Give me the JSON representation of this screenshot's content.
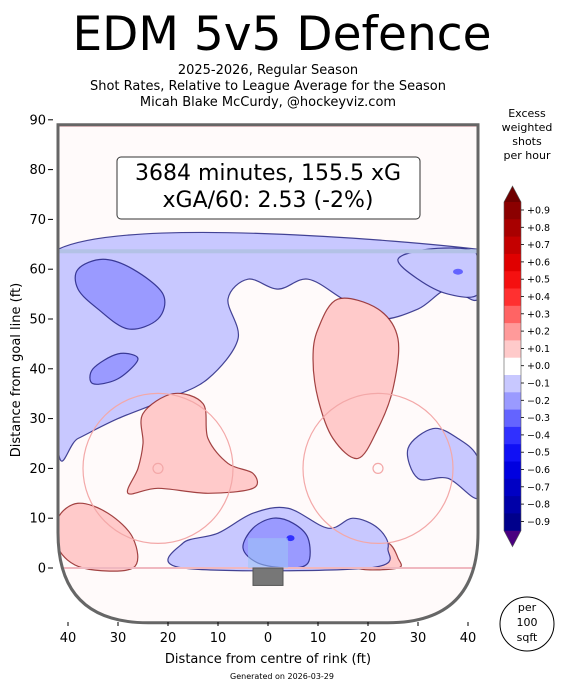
{
  "title": "EDM 5v5 Defence",
  "subtitle_lines": [
    "2025-2026, Regular Season",
    "Shot Rates, Relative to League Average for the Season",
    "Micah Blake McCurdy, @hockeyviz.com"
  ],
  "footer": "Generated on 2026-03-29",
  "annotation": {
    "line1": "3684 minutes, 155.5 xG",
    "line2": "xGA/60: 2.53 (-2%)"
  },
  "chart_data": {
    "type": "heatmap",
    "xlabel": "Distance from centre of rink (ft)",
    "ylabel": "Distance from goal line (ft)",
    "xlim": [
      -42,
      42
    ],
    "ylim": [
      -11,
      90
    ],
    "x_ticks": [
      {
        "v": -40,
        "label": "40"
      },
      {
        "v": -30,
        "label": "30"
      },
      {
        "v": -20,
        "label": "20"
      },
      {
        "v": -10,
        "label": "10"
      },
      {
        "v": 0,
        "label": "0"
      },
      {
        "v": 10,
        "label": "10"
      },
      {
        "v": 20,
        "label": "20"
      },
      {
        "v": 30,
        "label": "30"
      },
      {
        "v": 40,
        "label": "40"
      }
    ],
    "y_ticks": [
      0,
      10,
      20,
      30,
      40,
      50,
      60,
      70,
      80,
      90
    ],
    "colorbar": {
      "title_lines": [
        "Excess",
        "weighted",
        "shots",
        "per hour"
      ],
      "labels": [
        "+0.9",
        "+0.8",
        "+0.7",
        "+0.6",
        "+0.5",
        "+0.4",
        "+0.3",
        "+0.2",
        "+0.1",
        "+0.0",
        "−0.1",
        "−0.2",
        "−0.3",
        "−0.4",
        "−0.5",
        "−0.6",
        "−0.7",
        "−0.8",
        "−0.9"
      ],
      "colors": [
        "#8b0000",
        "#a80000",
        "#c40000",
        "#e00000",
        "#f51010",
        "#ff3030",
        "#ff6464",
        "#ff9a9a",
        "#ffcaca",
        "#ffffff",
        "#c8c8ff",
        "#9a9aff",
        "#6464ff",
        "#3030ff",
        "#1010f5",
        "#0000e0",
        "#0000c4",
        "#0000a8",
        "#00008b"
      ],
      "extend_colors": {
        "top": "#6e0000",
        "bottom": "#4a0080"
      },
      "unit_lines": [
        "per",
        "100",
        "sqft"
      ]
    },
    "regions": [
      {
        "level": -0.1,
        "sign": "negative",
        "description_points": [
          [
            -42,
            64
          ],
          [
            42,
            64
          ],
          [
            42,
            54
          ],
          [
            36,
            56
          ],
          [
            30,
            52
          ],
          [
            22,
            50
          ],
          [
            15,
            54
          ],
          [
            8,
            58
          ],
          [
            2,
            56
          ],
          [
            -4,
            58
          ],
          [
            -8,
            54
          ],
          [
            -6,
            46
          ],
          [
            -12,
            38
          ],
          [
            -20,
            34
          ],
          [
            -30,
            30
          ],
          [
            -38,
            26
          ],
          [
            -42,
            24
          ]
        ]
      },
      {
        "level": -0.2,
        "sign": "negative",
        "points": [
          [
            -38,
            60
          ],
          [
            -33,
            62
          ],
          [
            -27,
            60
          ],
          [
            -21,
            55
          ],
          [
            -22,
            50
          ],
          [
            -28,
            48
          ],
          [
            -34,
            52
          ],
          [
            -38,
            56
          ]
        ]
      },
      {
        "level": -0.2,
        "sign": "negative",
        "points": [
          [
            -35,
            40
          ],
          [
            -30,
            43
          ],
          [
            -26,
            42
          ],
          [
            -30,
            38
          ],
          [
            -35,
            37
          ]
        ]
      },
      {
        "level": 0.1,
        "sign": "positive",
        "points": [
          [
            10,
            48
          ],
          [
            14,
            54
          ],
          [
            22,
            52
          ],
          [
            26,
            46
          ],
          [
            25,
            36
          ],
          [
            22,
            28
          ],
          [
            18,
            22
          ],
          [
            13,
            26
          ],
          [
            10,
            34
          ],
          [
            9,
            42
          ]
        ]
      },
      {
        "level": 0.1,
        "sign": "positive",
        "points": [
          [
            -25,
            31
          ],
          [
            -19,
            35
          ],
          [
            -13,
            33
          ],
          [
            -12,
            26
          ],
          [
            -8,
            21
          ],
          [
            -3,
            19
          ],
          [
            -3,
            16
          ],
          [
            -12,
            15
          ],
          [
            -22,
            16
          ],
          [
            -28,
            15
          ],
          [
            -26,
            20
          ],
          [
            -25,
            25
          ]
        ]
      },
      {
        "level": 0.1,
        "sign": "positive",
        "points": [
          [
            -42,
            10
          ],
          [
            -38,
            13
          ],
          [
            -32,
            11
          ],
          [
            -27,
            6
          ],
          [
            -27,
            0
          ],
          [
            -37,
            0
          ],
          [
            -42,
            4
          ]
        ]
      },
      {
        "level": 0.1,
        "sign": "positive",
        "points": [
          [
            18,
            0
          ],
          [
            20,
            4
          ],
          [
            24,
            5
          ],
          [
            26,
            2
          ],
          [
            26,
            0
          ]
        ]
      },
      {
        "level": -0.1,
        "sign": "negative",
        "points": [
          [
            -17,
            5
          ],
          [
            -10,
            7
          ],
          [
            -3,
            11
          ],
          [
            4,
            12
          ],
          [
            12,
            8
          ],
          [
            17,
            10
          ],
          [
            22,
            8
          ],
          [
            24,
            4
          ],
          [
            20,
            0
          ],
          [
            -17,
            0
          ]
        ]
      },
      {
        "level": -0.2,
        "sign": "negative",
        "points": [
          [
            -3,
            8
          ],
          [
            1,
            10
          ],
          [
            5,
            9
          ],
          [
            8,
            6
          ],
          [
            8,
            1
          ],
          [
            4,
            0
          ],
          [
            -2,
            1
          ],
          [
            -5,
            4
          ]
        ]
      },
      {
        "level": -0.1,
        "sign": "negative",
        "points": [
          [
            28,
            24
          ],
          [
            33,
            28
          ],
          [
            38,
            26
          ],
          [
            42,
            22
          ],
          [
            42,
            14
          ],
          [
            36,
            18
          ],
          [
            30,
            18
          ]
        ]
      },
      {
        "level": -0.1,
        "sign": "negative",
        "points": [
          [
            26,
            62
          ],
          [
            32,
            64
          ],
          [
            40,
            64
          ],
          [
            42,
            62
          ],
          [
            42,
            55
          ],
          [
            36,
            55
          ],
          [
            30,
            58
          ]
        ]
      }
    ]
  }
}
